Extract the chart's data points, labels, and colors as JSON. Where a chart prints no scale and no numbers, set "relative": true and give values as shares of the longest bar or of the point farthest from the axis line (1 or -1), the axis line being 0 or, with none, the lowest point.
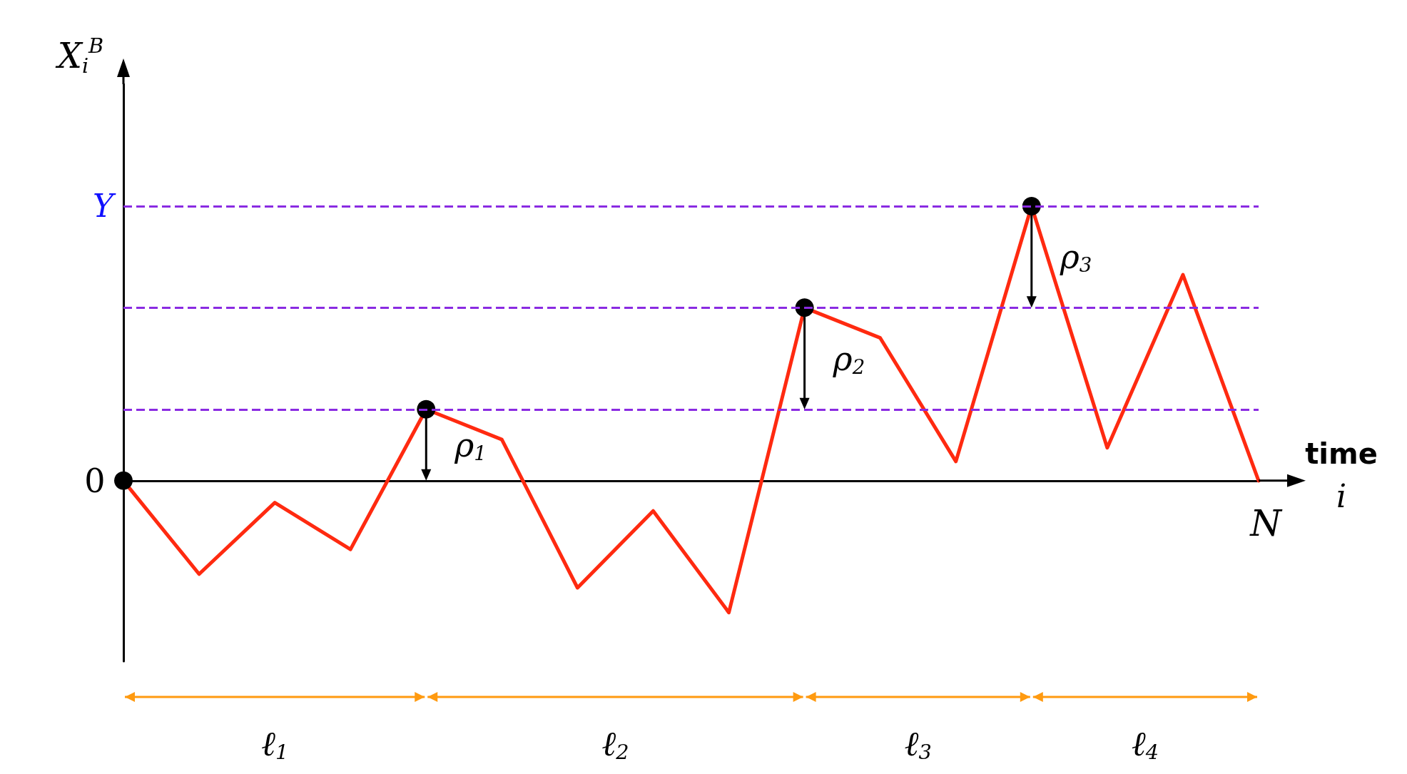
{
  "chart_data": {
    "type": "line",
    "relative": true,
    "ylabel": "X$_{i}$$^{B}$",
    "xlabel": "time\ni",
    "categories": [
      null,
      null,
      null,
      null,
      null,
      null,
      null,
      null,
      null,
      null,
      null,
      null,
      null,
      null,
      null,
      null
    ],
    "series": [
      {
        "color": "#ff2a10",
        "values": [
          0,
          -0.34,
          -0.08,
          -0.25,
          0.26,
          0.15,
          -0.39,
          -0.11,
          -0.48,
          0.63,
          0.52,
          0.07,
          1,
          0.12,
          0.75,
          0
        ]
      }
    ],
    "ref_lines": [
      {
        "axis": "y",
        "value": 1,
        "label": "Y",
        "color": "#8a2be2",
        "line_style": "dashed"
      },
      {
        "axis": "y",
        "value": 0.26,
        "label": null,
        "color": "#8a2be2",
        "line_style": "dashed"
      },
      {
        "axis": "y",
        "value": 0.63,
        "label": null,
        "color": "#8a2be2",
        "line_style": "dashed"
      }
    ],
    "annotations": [
      "0",
      "ρ$_{1}$",
      "ρ$_{2}$",
      "ρ$_{3}$",
      "ℓ$_{1}$",
      "ℓ$_{2}$",
      "ℓ$_{3}$",
      "ℓ$_{4}$",
      "N"
    ],
    "marker": "none",
    "line_style": "solid"
  }
}
